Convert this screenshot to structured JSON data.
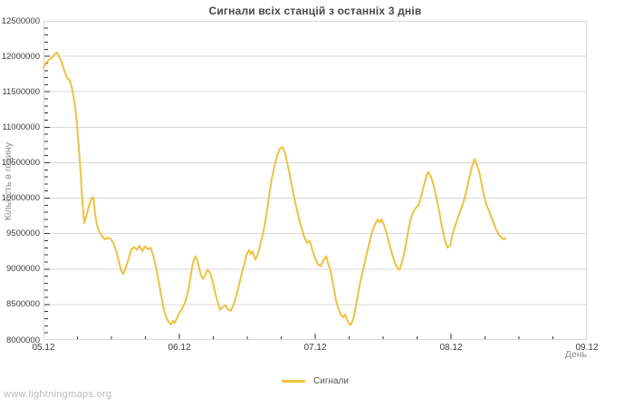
{
  "title": "Сигнали всіх станцій з останніх 3 днів",
  "watermark": "www.lightningmaps.org",
  "legend": {
    "series_label": "Сигнали"
  },
  "axes": {
    "y_label": "Кількість в годину",
    "x_label": "День"
  },
  "colors": {
    "series": "#edc240",
    "grid": "#d8d8d8",
    "plot_border": "#d8d8d8",
    "tick_mark": "#333333",
    "axis_text": "#3d3d3d",
    "muted_text": "#8a8a8a",
    "watermark_text": "#b9b9b9",
    "title_text": "#474747",
    "background": "#ffffff"
  },
  "chart_data": {
    "type": "line",
    "title": "Сигнали всіх станцій з останніх 3 днів",
    "xlabel": "День",
    "ylabel": "Кількість в годину",
    "grid": "horizontal",
    "legend_position": "bottom-center",
    "xlim_days": [
      0,
      4
    ],
    "x_tick_labels": [
      "05.12",
      "06.12",
      "07.12",
      "08.12",
      "09.12"
    ],
    "x_tick_positions_days": [
      0,
      1,
      2,
      3,
      4
    ],
    "x_minor_step_days": 0.25,
    "ylim": [
      8000000,
      12500000
    ],
    "y_major_step": 500000,
    "y_minor_step": 100000,
    "y_tick_values": [
      8000000,
      8500000,
      9000000,
      9500000,
      10000000,
      10500000,
      11000000,
      11500000,
      12000000,
      12500000
    ],
    "y_tick_labels": [
      "8000000",
      "8500000",
      "9000000",
      "9500000",
      "10000000",
      "10500000",
      "11000000",
      "11500000",
      "12000000",
      "12500000"
    ],
    "series": [
      {
        "name": "Сигнали",
        "color": "#edc240",
        "points_day_value": [
          [
            0.0,
            11840000
          ],
          [
            0.02,
            11910000
          ],
          [
            0.04,
            11950000
          ],
          [
            0.067,
            11990000
          ],
          [
            0.087,
            12040000
          ],
          [
            0.1,
            12050000
          ],
          [
            0.113,
            12000000
          ],
          [
            0.133,
            11920000
          ],
          [
            0.153,
            11800000
          ],
          [
            0.173,
            11700000
          ],
          [
            0.193,
            11660000
          ],
          [
            0.207,
            11580000
          ],
          [
            0.22,
            11440000
          ],
          [
            0.233,
            11280000
          ],
          [
            0.247,
            11050000
          ],
          [
            0.26,
            10720000
          ],
          [
            0.273,
            10350000
          ],
          [
            0.287,
            9950000
          ],
          [
            0.3,
            9650000
          ],
          [
            0.313,
            9730000
          ],
          [
            0.333,
            9880000
          ],
          [
            0.353,
            10000000
          ],
          [
            0.367,
            10010000
          ],
          [
            0.38,
            9780000
          ],
          [
            0.393,
            9620000
          ],
          [
            0.413,
            9520000
          ],
          [
            0.433,
            9460000
          ],
          [
            0.453,
            9420000
          ],
          [
            0.473,
            9440000
          ],
          [
            0.493,
            9430000
          ],
          [
            0.513,
            9370000
          ],
          [
            0.533,
            9270000
          ],
          [
            0.553,
            9130000
          ],
          [
            0.573,
            8970000
          ],
          [
            0.587,
            8930000
          ],
          [
            0.607,
            9030000
          ],
          [
            0.627,
            9150000
          ],
          [
            0.647,
            9280000
          ],
          [
            0.667,
            9310000
          ],
          [
            0.687,
            9270000
          ],
          [
            0.707,
            9330000
          ],
          [
            0.727,
            9250000
          ],
          [
            0.747,
            9320000
          ],
          [
            0.767,
            9280000
          ],
          [
            0.787,
            9300000
          ],
          [
            0.807,
            9200000
          ],
          [
            0.827,
            9030000
          ],
          [
            0.847,
            8830000
          ],
          [
            0.867,
            8620000
          ],
          [
            0.887,
            8420000
          ],
          [
            0.907,
            8300000
          ],
          [
            0.927,
            8240000
          ],
          [
            0.94,
            8220000
          ],
          [
            0.953,
            8270000
          ],
          [
            0.967,
            8240000
          ],
          [
            0.98,
            8300000
          ],
          [
            1.0,
            8380000
          ],
          [
            1.02,
            8440000
          ],
          [
            1.04,
            8520000
          ],
          [
            1.06,
            8650000
          ],
          [
            1.08,
            8850000
          ],
          [
            1.093,
            9020000
          ],
          [
            1.107,
            9130000
          ],
          [
            1.12,
            9180000
          ],
          [
            1.133,
            9120000
          ],
          [
            1.147,
            9000000
          ],
          [
            1.16,
            8910000
          ],
          [
            1.173,
            8860000
          ],
          [
            1.193,
            8930000
          ],
          [
            1.207,
            8990000
          ],
          [
            1.227,
            8940000
          ],
          [
            1.247,
            8810000
          ],
          [
            1.267,
            8640000
          ],
          [
            1.287,
            8510000
          ],
          [
            1.3,
            8430000
          ],
          [
            1.32,
            8460000
          ],
          [
            1.34,
            8490000
          ],
          [
            1.36,
            8430000
          ],
          [
            1.38,
            8410000
          ],
          [
            1.4,
            8500000
          ],
          [
            1.42,
            8630000
          ],
          [
            1.44,
            8780000
          ],
          [
            1.46,
            8950000
          ],
          [
            1.48,
            9080000
          ],
          [
            1.493,
            9190000
          ],
          [
            1.513,
            9270000
          ],
          [
            1.527,
            9210000
          ],
          [
            1.54,
            9250000
          ],
          [
            1.56,
            9130000
          ],
          [
            1.58,
            9220000
          ],
          [
            1.6,
            9380000
          ],
          [
            1.62,
            9530000
          ],
          [
            1.64,
            9750000
          ],
          [
            1.66,
            10020000
          ],
          [
            1.68,
            10270000
          ],
          [
            1.7,
            10450000
          ],
          [
            1.72,
            10600000
          ],
          [
            1.74,
            10700000
          ],
          [
            1.76,
            10720000
          ],
          [
            1.78,
            10620000
          ],
          [
            1.8,
            10450000
          ],
          [
            1.82,
            10260000
          ],
          [
            1.84,
            10060000
          ],
          [
            1.86,
            9880000
          ],
          [
            1.88,
            9720000
          ],
          [
            1.9,
            9580000
          ],
          [
            1.92,
            9450000
          ],
          [
            1.94,
            9370000
          ],
          [
            1.96,
            9400000
          ],
          [
            1.98,
            9260000
          ],
          [
            2.0,
            9150000
          ],
          [
            2.02,
            9070000
          ],
          [
            2.04,
            9040000
          ],
          [
            2.06,
            9120000
          ],
          [
            2.08,
            9180000
          ],
          [
            2.093,
            9100000
          ],
          [
            2.113,
            8980000
          ],
          [
            2.133,
            8780000
          ],
          [
            2.153,
            8560000
          ],
          [
            2.173,
            8430000
          ],
          [
            2.193,
            8350000
          ],
          [
            2.207,
            8320000
          ],
          [
            2.22,
            8360000
          ],
          [
            2.24,
            8260000
          ],
          [
            2.26,
            8210000
          ],
          [
            2.28,
            8290000
          ],
          [
            2.3,
            8480000
          ],
          [
            2.32,
            8700000
          ],
          [
            2.34,
            8890000
          ],
          [
            2.36,
            9050000
          ],
          [
            2.38,
            9220000
          ],
          [
            2.4,
            9380000
          ],
          [
            2.42,
            9530000
          ],
          [
            2.44,
            9630000
          ],
          [
            2.46,
            9700000
          ],
          [
            2.473,
            9660000
          ],
          [
            2.487,
            9700000
          ],
          [
            2.507,
            9620000
          ],
          [
            2.527,
            9490000
          ],
          [
            2.547,
            9340000
          ],
          [
            2.567,
            9210000
          ],
          [
            2.587,
            9080000
          ],
          [
            2.607,
            9010000
          ],
          [
            2.62,
            8990000
          ],
          [
            2.64,
            9100000
          ],
          [
            2.66,
            9270000
          ],
          [
            2.68,
            9480000
          ],
          [
            2.7,
            9680000
          ],
          [
            2.72,
            9800000
          ],
          [
            2.74,
            9860000
          ],
          [
            2.76,
            9900000
          ],
          [
            2.78,
            10020000
          ],
          [
            2.8,
            10180000
          ],
          [
            2.82,
            10320000
          ],
          [
            2.833,
            10370000
          ],
          [
            2.853,
            10300000
          ],
          [
            2.873,
            10170000
          ],
          [
            2.893,
            10000000
          ],
          [
            2.913,
            9820000
          ],
          [
            2.933,
            9600000
          ],
          [
            2.953,
            9420000
          ],
          [
            2.973,
            9300000
          ],
          [
            2.993,
            9330000
          ],
          [
            3.013,
            9500000
          ],
          [
            3.033,
            9620000
          ],
          [
            3.053,
            9740000
          ],
          [
            3.073,
            9840000
          ],
          [
            3.093,
            9950000
          ],
          [
            3.113,
            10100000
          ],
          [
            3.133,
            10280000
          ],
          [
            3.153,
            10440000
          ],
          [
            3.173,
            10550000
          ],
          [
            3.193,
            10460000
          ],
          [
            3.213,
            10320000
          ],
          [
            3.233,
            10120000
          ],
          [
            3.253,
            9950000
          ],
          [
            3.273,
            9850000
          ],
          [
            3.293,
            9750000
          ],
          [
            3.313,
            9650000
          ],
          [
            3.333,
            9550000
          ],
          [
            3.353,
            9480000
          ],
          [
            3.373,
            9440000
          ],
          [
            3.39,
            9420000
          ],
          [
            3.4,
            9440000
          ]
        ]
      }
    ]
  }
}
